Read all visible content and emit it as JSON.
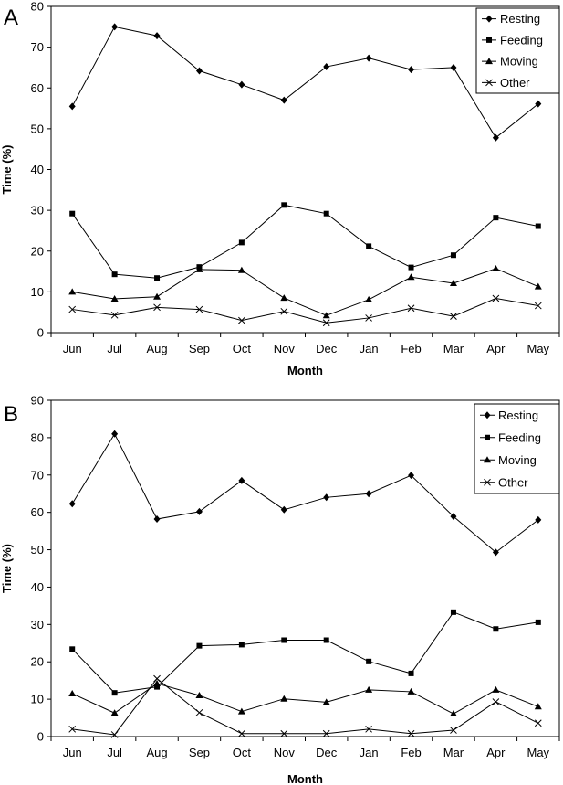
{
  "chart_data": [
    {
      "panel": "A",
      "type": "line",
      "categories": [
        "Jun",
        "Jul",
        "Aug",
        "Sep",
        "Oct",
        "Nov",
        "Dec",
        "Jan",
        "Feb",
        "Mar",
        "Apr",
        "May"
      ],
      "series": [
        {
          "name": "Resting",
          "marker": "diamond",
          "values": [
            55.5,
            75,
            72.8,
            64.2,
            60.8,
            57,
            65.2,
            67.3,
            64.5,
            65,
            47.8,
            56.1
          ]
        },
        {
          "name": "Feeding",
          "marker": "square",
          "values": [
            29.2,
            14.3,
            13.4,
            16.1,
            22.1,
            31.3,
            29.2,
            21.2,
            16,
            19,
            28.2,
            26.1
          ]
        },
        {
          "name": "Moving",
          "marker": "triangle",
          "values": [
            10,
            8.3,
            8.8,
            15.5,
            15.3,
            8.5,
            4.2,
            8.1,
            13.6,
            12.1,
            15.7,
            11.3
          ]
        },
        {
          "name": "Other",
          "marker": "x",
          "values": [
            5.7,
            4.3,
            6.2,
            5.7,
            3,
            5.2,
            2.4,
            3.6,
            6,
            4,
            8.4,
            6.6
          ]
        }
      ],
      "xlabel": "Month",
      "ylabel": "Time (%)",
      "ylim": [
        0,
        80
      ],
      "yticks": [
        0,
        10,
        20,
        30,
        40,
        50,
        60,
        70,
        80
      ],
      "legend_position": "top-right",
      "grid": false
    },
    {
      "panel": "B",
      "type": "line",
      "categories": [
        "Jun",
        "Jul",
        "Aug",
        "Sep",
        "Oct",
        "Nov",
        "Dec",
        "Jan",
        "Feb",
        "Mar",
        "Apr",
        "May"
      ],
      "series": [
        {
          "name": "Resting",
          "marker": "diamond",
          "values": [
            62.3,
            81,
            58.2,
            60.2,
            68.5,
            60.7,
            64,
            65,
            69.9,
            58.9,
            49.3,
            58
          ]
        },
        {
          "name": "Feeding",
          "marker": "square",
          "values": [
            23.4,
            11.7,
            13.3,
            24.3,
            24.6,
            25.8,
            25.8,
            20.1,
            16.9,
            33.3,
            28.8,
            30.6
          ]
        },
        {
          "name": "Moving",
          "marker": "triangle",
          "values": [
            11.5,
            6.3,
            14.2,
            11,
            6.7,
            10.1,
            9.2,
            12.5,
            12,
            6.1,
            12.5,
            8
          ]
        },
        {
          "name": "Other",
          "marker": "x",
          "values": [
            2,
            0.5,
            15.5,
            6.4,
            0.8,
            0.8,
            0.8,
            2,
            0.8,
            1.7,
            9.3,
            3.6
          ]
        }
      ],
      "xlabel": "Month",
      "ylabel": "Time (%)",
      "ylim": [
        0,
        90
      ],
      "yticks": [
        0,
        10,
        20,
        30,
        40,
        50,
        60,
        70,
        80,
        90
      ],
      "legend_position": "top-right",
      "grid": false
    }
  ]
}
